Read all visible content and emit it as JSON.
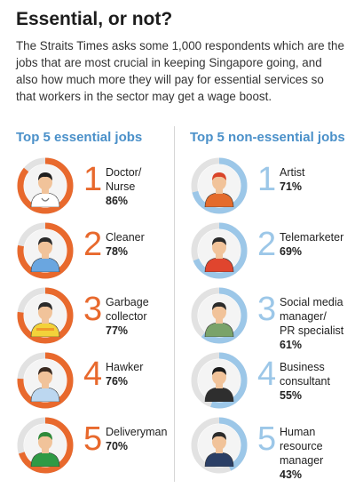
{
  "title": "Essential, or not?",
  "intro": "The Straits Times asks some 1,000 respondents which are the jobs that are most crucial in keeping Singapore going, and also how much more they will pay for essential services so that workers in the sector may get a wage boost.",
  "colors": {
    "essential": "#e8692d",
    "nonessential": "#9cc7e8",
    "track": "#e2e2e2",
    "heading": "#4a90c9"
  },
  "essential": {
    "heading": "Top 5 essential jobs",
    "items": [
      {
        "rank": "1",
        "line1": "Doctor/",
        "line2": "Nurse",
        "line3": "",
        "pct": "86%",
        "value": 86,
        "icon": "doctor-icon"
      },
      {
        "rank": "2",
        "line1": "Cleaner",
        "line2": "",
        "line3": "",
        "pct": "78%",
        "value": 78,
        "icon": "cleaner-icon"
      },
      {
        "rank": "3",
        "line1": "Garbage",
        "line2": "collector",
        "line3": "",
        "pct": "77%",
        "value": 77,
        "icon": "garbage-collector-icon"
      },
      {
        "rank": "4",
        "line1": "Hawker",
        "line2": "",
        "line3": "",
        "pct": "76%",
        "value": 76,
        "icon": "hawker-icon"
      },
      {
        "rank": "5",
        "line1": "Deliveryman",
        "line2": "",
        "line3": "",
        "pct": "70%",
        "value": 70,
        "icon": "deliveryman-icon"
      }
    ]
  },
  "nonessential": {
    "heading": "Top 5 non-essential jobs",
    "items": [
      {
        "rank": "1",
        "line1": "Artist",
        "line2": "",
        "line3": "",
        "pct": "71%",
        "value": 71,
        "icon": "artist-icon"
      },
      {
        "rank": "2",
        "line1": "Telemarketer",
        "line2": "",
        "line3": "",
        "pct": "69%",
        "value": 69,
        "icon": "telemarketer-icon"
      },
      {
        "rank": "3",
        "line1": "Social media",
        "line2": "manager/",
        "line3": "PR specialist",
        "pct": "61%",
        "value": 61,
        "icon": "social-media-manager-icon"
      },
      {
        "rank": "4",
        "line1": "Business",
        "line2": "consultant",
        "line3": "",
        "pct": "55%",
        "value": 55,
        "icon": "business-consultant-icon"
      },
      {
        "rank": "5",
        "line1": "Human",
        "line2": "resource",
        "line3": "manager",
        "pct": "43%",
        "value": 43,
        "icon": "hr-manager-icon"
      }
    ]
  }
}
